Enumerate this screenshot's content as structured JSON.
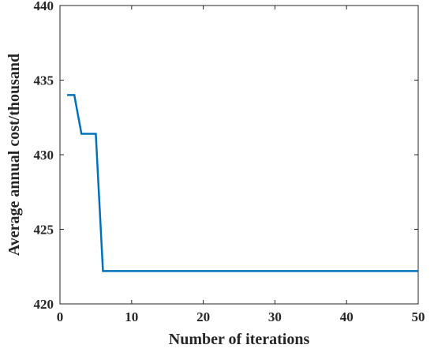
{
  "chart_data": {
    "type": "line",
    "xlabel": "Number of iterations",
    "ylabel": "Average annual cost/thousand",
    "x": [
      1,
      2,
      3,
      4,
      5,
      6,
      7,
      8,
      9,
      10,
      11,
      12,
      13,
      14,
      15,
      16,
      17,
      18,
      19,
      20,
      21,
      22,
      23,
      24,
      25,
      26,
      27,
      28,
      29,
      30,
      31,
      32,
      33,
      34,
      35,
      36,
      37,
      38,
      39,
      40,
      41,
      42,
      43,
      44,
      45,
      46,
      47,
      48,
      49,
      50
    ],
    "series": [
      {
        "color": "#0072bd",
        "values": [
          434.0,
          434.0,
          431.4,
          431.4,
          431.4,
          422.2,
          422.2,
          422.2,
          422.2,
          422.2,
          422.2,
          422.2,
          422.2,
          422.2,
          422.2,
          422.2,
          422.2,
          422.2,
          422.2,
          422.2,
          422.2,
          422.2,
          422.2,
          422.2,
          422.2,
          422.2,
          422.2,
          422.2,
          422.2,
          422.2,
          422.2,
          422.2,
          422.2,
          422.2,
          422.2,
          422.2,
          422.2,
          422.2,
          422.2,
          422.2,
          422.2,
          422.2,
          422.2,
          422.2,
          422.2,
          422.2,
          422.2,
          422.2,
          422.2,
          422.2
        ]
      }
    ],
    "xlim": [
      0,
      50
    ],
    "xticks": [
      0,
      10,
      20,
      30,
      40,
      50
    ],
    "ylim": [
      420,
      440
    ],
    "yticks": [
      420,
      425,
      430,
      435,
      440
    ]
  }
}
